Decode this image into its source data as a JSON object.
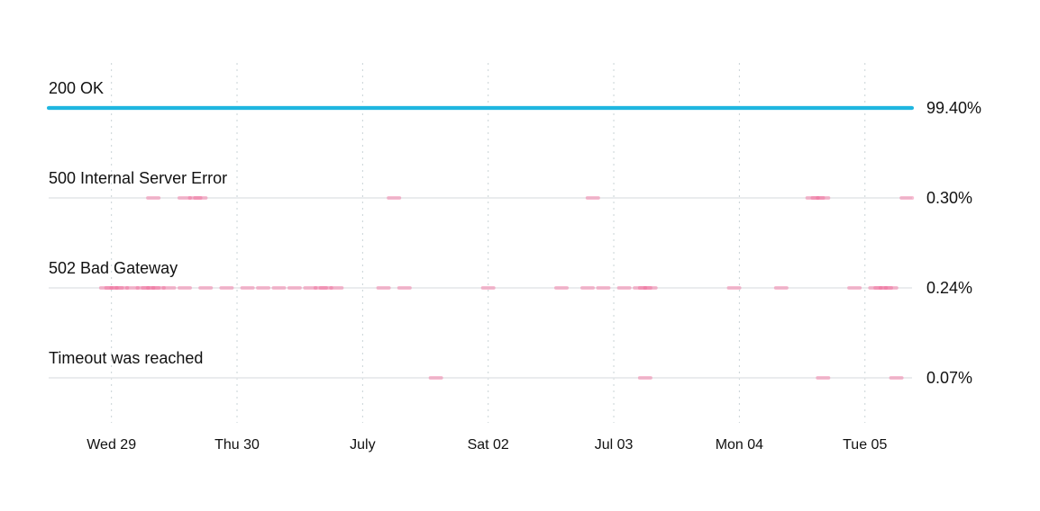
{
  "chart_data": {
    "type": "timeline",
    "title": "",
    "xlabel": "",
    "ylabel": "",
    "grid": true,
    "x_start": "2022-06-28T12:00",
    "x_end": "2022-07-05T09:00",
    "x_ticks": [
      {
        "label": "Wed 29",
        "date": "2022-06-29T00:00"
      },
      {
        "label": "Thu 30",
        "date": "2022-06-30T00:00"
      },
      {
        "label": "July",
        "date": "2022-07-01T00:00"
      },
      {
        "label": "Sat 02",
        "date": "2022-07-02T00:00"
      },
      {
        "label": "Jul 03",
        "date": "2022-07-03T00:00"
      },
      {
        "label": "Mon 04",
        "date": "2022-07-04T00:00"
      },
      {
        "label": "Tue 05",
        "date": "2022-07-05T00:00"
      }
    ],
    "series": [
      {
        "name": "200 OK",
        "share": "99.40%",
        "color": "#1fb6e0",
        "continuous": true,
        "events": []
      },
      {
        "name": "500 Internal Server Error",
        "share": "0.30%",
        "color": "#f06c9b",
        "continuous": false,
        "events": [
          "2022-06-29T08:00",
          "2022-06-29T14:00",
          "2022-06-29T16:00",
          "2022-06-29T17:00",
          "2022-07-01T06:00",
          "2022-07-02T20:00",
          "2022-07-04T14:00",
          "2022-07-04T15:00",
          "2022-07-04T16:00",
          "2022-07-05T08:00"
        ]
      },
      {
        "name": "502 Bad Gateway",
        "share": "0.24%",
        "color": "#f06c9b",
        "continuous": false,
        "events": [
          "2022-06-28T23:00",
          "2022-06-29T00:00",
          "2022-06-29T01:00",
          "2022-06-29T02:00",
          "2022-06-29T04:00",
          "2022-06-29T06:00",
          "2022-06-29T07:00",
          "2022-06-29T08:00",
          "2022-06-29T09:00",
          "2022-06-29T11:00",
          "2022-06-29T14:00",
          "2022-06-29T18:00",
          "2022-06-29T22:00",
          "2022-06-30T02:00",
          "2022-06-30T05:00",
          "2022-06-30T08:00",
          "2022-06-30T11:00",
          "2022-06-30T14:00",
          "2022-06-30T16:00",
          "2022-06-30T17:00",
          "2022-06-30T19:00",
          "2022-07-01T04:00",
          "2022-07-01T08:00",
          "2022-07-02T00:00",
          "2022-07-02T14:00",
          "2022-07-02T19:00",
          "2022-07-02T22:00",
          "2022-07-03T02:00",
          "2022-07-03T05:00",
          "2022-07-03T06:00",
          "2022-07-03T07:00",
          "2022-07-03T23:00",
          "2022-07-04T08:00",
          "2022-07-04T22:00",
          "2022-07-05T02:00",
          "2022-07-05T03:00",
          "2022-07-05T04:00",
          "2022-07-05T05:00"
        ]
      },
      {
        "name": "Timeout was reached",
        "share": "0.07%",
        "color": "#f06c9b",
        "continuous": false,
        "events": [
          "2022-07-01T14:00",
          "2022-07-03T06:00",
          "2022-07-04T16:00",
          "2022-07-05T06:00"
        ]
      }
    ]
  }
}
